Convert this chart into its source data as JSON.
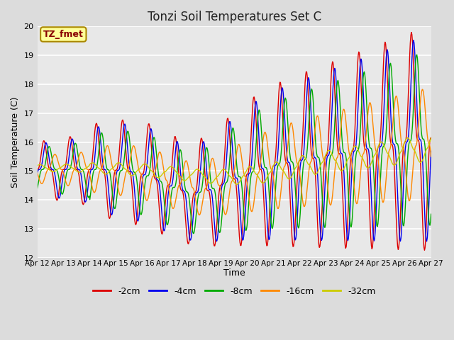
{
  "title": "Tonzi Soil Temperatures Set C",
  "xlabel": "Time",
  "ylabel": "Soil Temperature (C)",
  "ylim": [
    12.0,
    20.0
  ],
  "yticks": [
    12.0,
    13.0,
    14.0,
    15.0,
    16.0,
    17.0,
    18.0,
    19.0,
    20.0
  ],
  "xtick_labels": [
    "Apr 12",
    "Apr 13",
    "Apr 14",
    "Apr 15",
    "Apr 16",
    "Apr 17",
    "Apr 18",
    "Apr 19",
    "Apr 20",
    "Apr 21",
    "Apr 22",
    "Apr 23",
    "Apr 24",
    "Apr 25",
    "Apr 26",
    "Apr 27"
  ],
  "series_colors": [
    "#dd0000",
    "#0000ee",
    "#00aa00",
    "#ff8800",
    "#cccc00"
  ],
  "series_labels": [
    "-2cm",
    "-4cm",
    "-8cm",
    "-16cm",
    "-32cm"
  ],
  "annotation_text": "TZ_fmet",
  "annotation_bg": "#ffff99",
  "annotation_border": "#aa8800",
  "background_color": "#e8e8e8",
  "grid_color": "#ffffff",
  "n_points": 720,
  "legend_fontsize": 9,
  "title_fontsize": 12,
  "figsize": [
    6.4,
    4.8
  ],
  "dpi": 100
}
